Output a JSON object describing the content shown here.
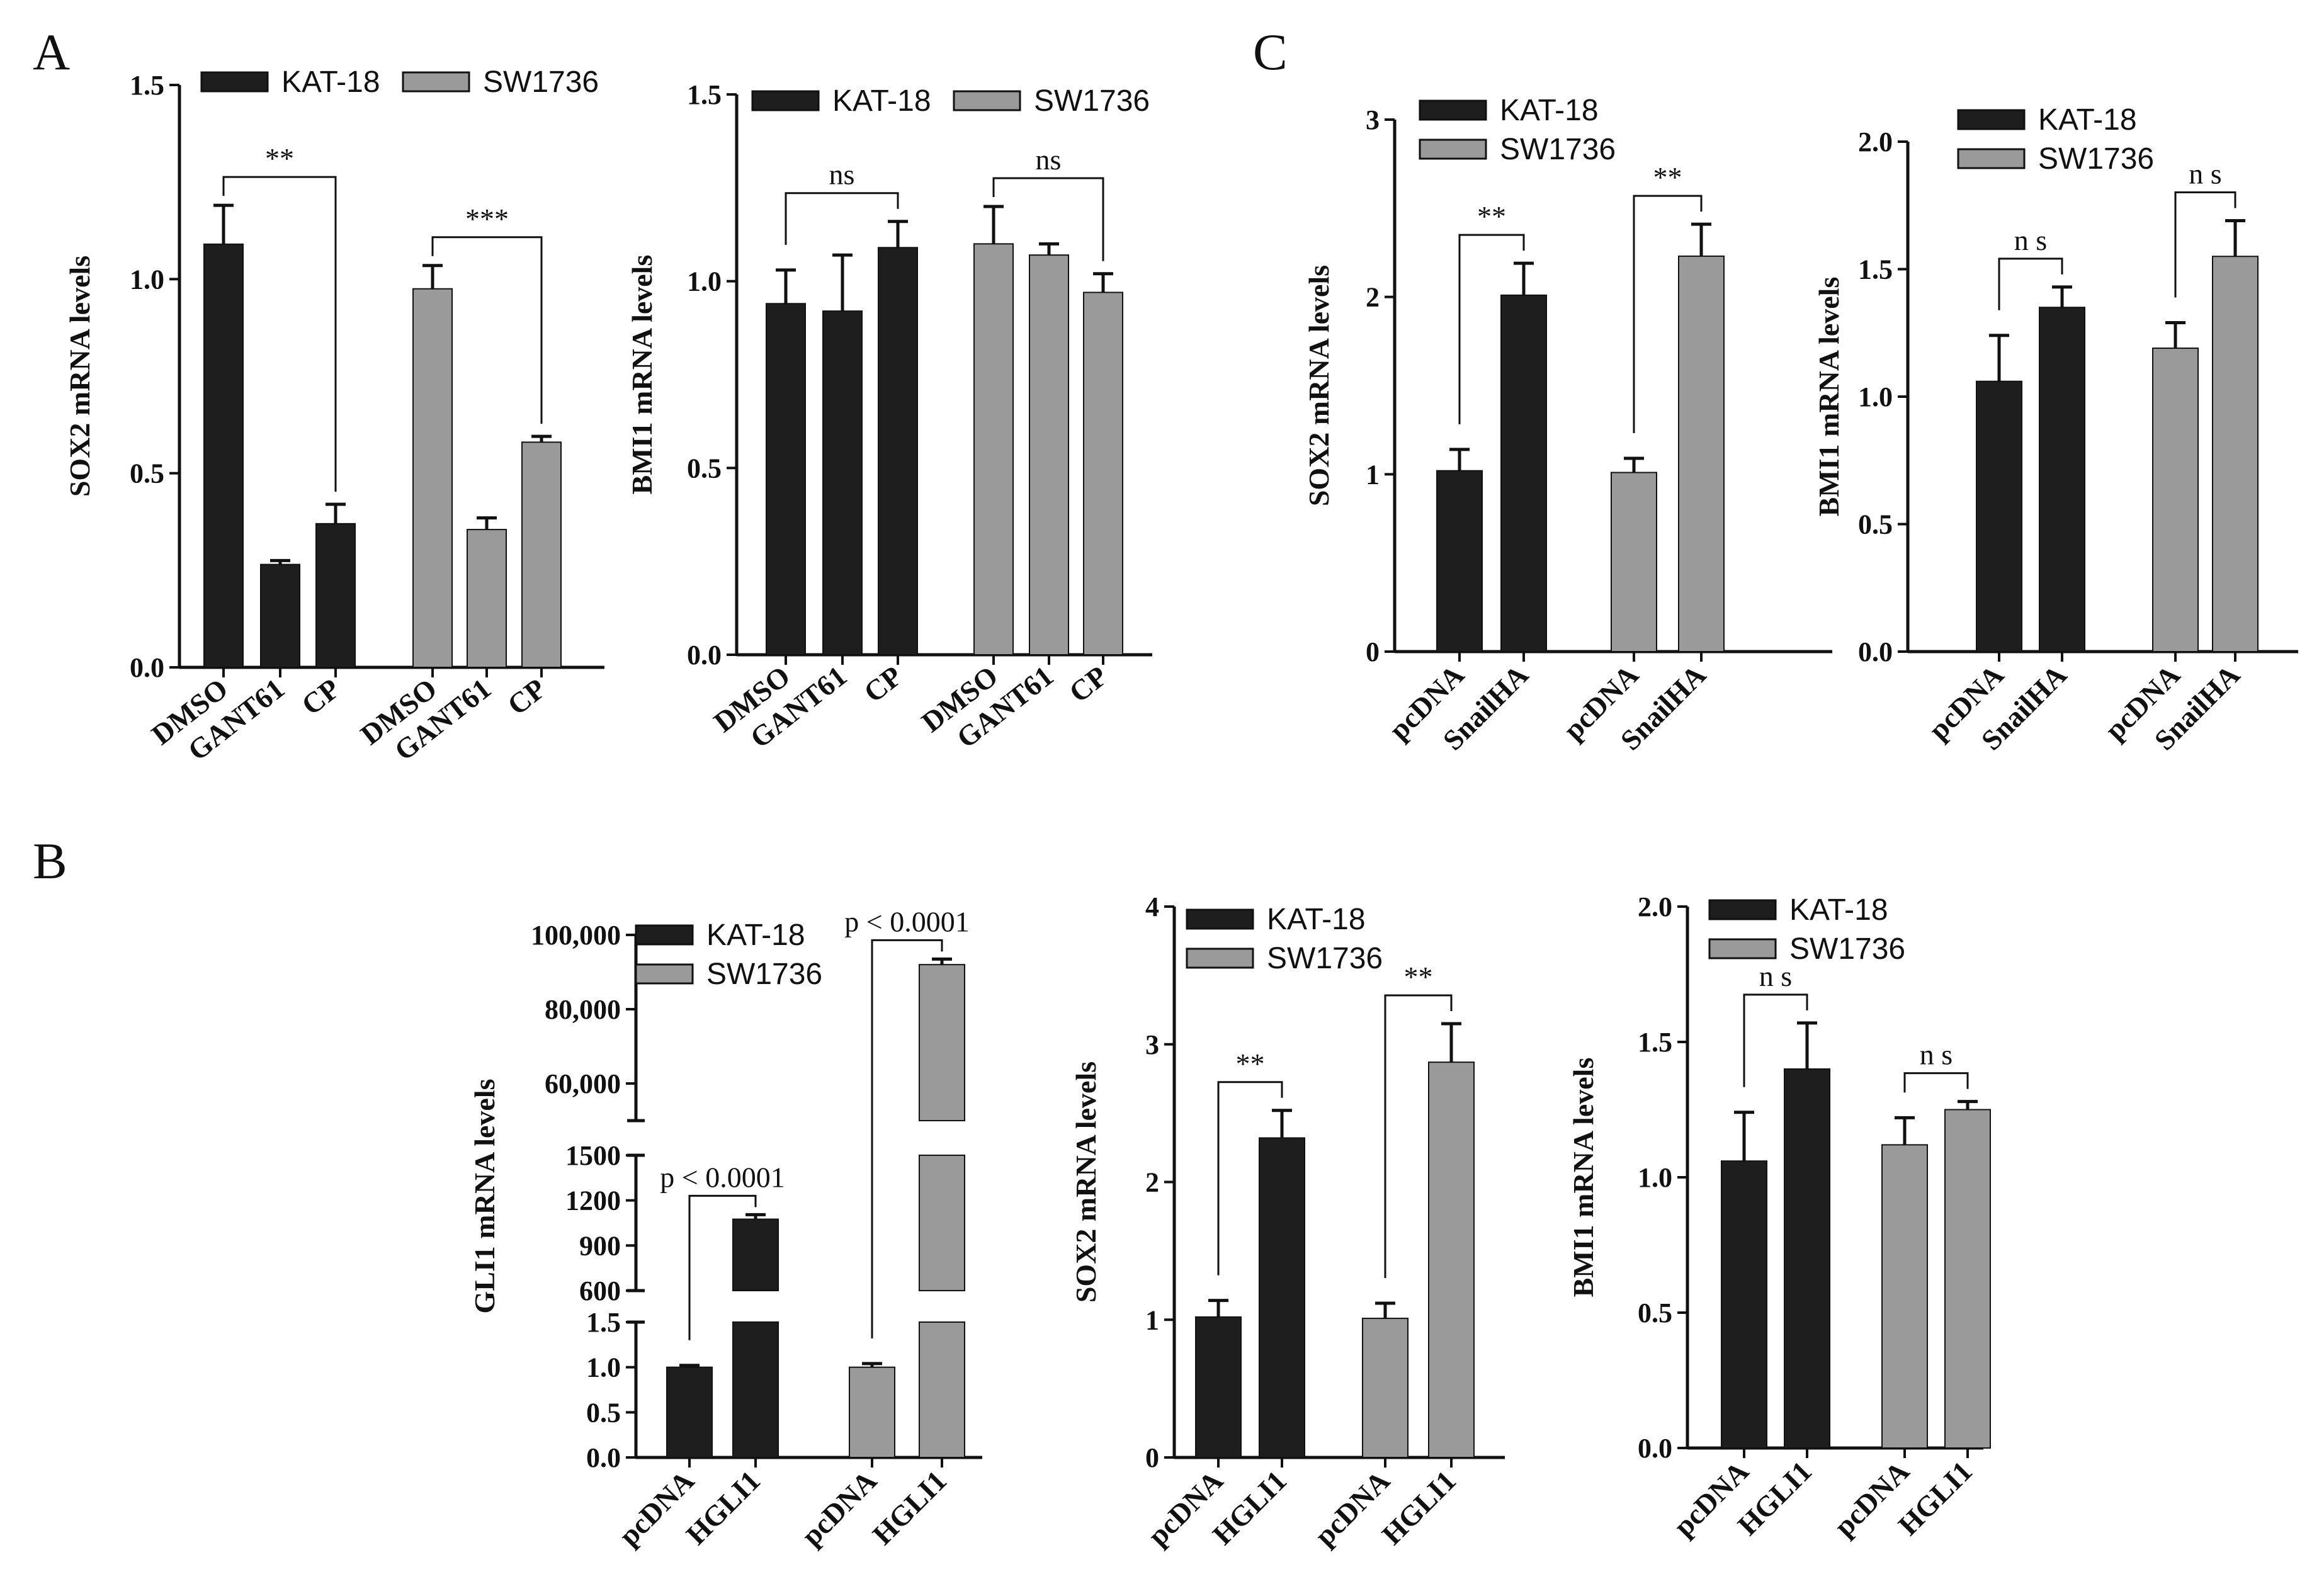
{
  "colors": {
    "kat18": "#1e1e1e",
    "sw1736": "#9a9a9a",
    "axis": "#111111"
  },
  "panels": [
    {
      "letter": "A"
    },
    {
      "letter": "B"
    },
    {
      "letter": "C"
    }
  ],
  "chart_data": [
    {
      "id": "A1",
      "type": "bar",
      "title": "",
      "ylabel": "SOX2 mRNA levels",
      "ylim": [
        0,
        1.5
      ],
      "yticks": [
        "0.0",
        "0.5",
        "1.0",
        "1.5"
      ],
      "legend": [
        "KAT-18",
        "SW1736"
      ],
      "groups": [
        {
          "name": "KAT-18",
          "series": 0,
          "categories": [
            "DMSO",
            "GANT61",
            "CP"
          ],
          "values": [
            1.09,
            0.265,
            0.37
          ],
          "errors": [
            0.1,
            0.01,
            0.05
          ]
        },
        {
          "name": "SW1736",
          "series": 1,
          "categories": [
            "DMSO",
            "GANT61",
            "CP"
          ],
          "values": [
            0.975,
            0.355,
            0.58
          ],
          "errors": [
            0.06,
            0.03,
            0.015
          ]
        }
      ],
      "annotations": [
        {
          "text": "**",
          "group": 0,
          "from": 0,
          "to": 2
        },
        {
          "text": "***",
          "group": 1,
          "from": 0,
          "to": 2
        }
      ]
    },
    {
      "id": "A2",
      "type": "bar",
      "title": "",
      "ylabel": "BMI1 mRNA levels",
      "ylim": [
        0,
        1.5
      ],
      "yticks": [
        "0.0",
        "0.5",
        "1.0",
        "1.5"
      ],
      "legend": [
        "KAT-18",
        "SW1736"
      ],
      "groups": [
        {
          "name": "KAT-18",
          "series": 0,
          "categories": [
            "DMSO",
            "GANT61",
            "CP"
          ],
          "values": [
            0.94,
            0.92,
            1.09
          ],
          "errors": [
            0.09,
            0.15,
            0.07
          ]
        },
        {
          "name": "SW1736",
          "series": 1,
          "categories": [
            "DMSO",
            "GANT61",
            "CP"
          ],
          "values": [
            1.1,
            1.07,
            0.97
          ],
          "errors": [
            0.1,
            0.03,
            0.05
          ]
        }
      ],
      "annotations": [
        {
          "text": "ns",
          "group": 0,
          "from": 0,
          "to": 2
        },
        {
          "text": "ns",
          "group": 1,
          "from": 0,
          "to": 2
        }
      ]
    },
    {
      "id": "C1",
      "type": "bar",
      "title": "",
      "ylabel": "SOX2 mRNA levels",
      "ylim": [
        0,
        3
      ],
      "yticks": [
        "0",
        "1",
        "2",
        "3"
      ],
      "legend": [
        "KAT-18",
        "SW1736"
      ],
      "groups": [
        {
          "name": "KAT-18",
          "series": 0,
          "categories": [
            "pcDNA",
            "SnailHA"
          ],
          "values": [
            1.02,
            2.01
          ],
          "errors": [
            0.12,
            0.18
          ]
        },
        {
          "name": "SW1736",
          "series": 1,
          "categories": [
            "pcDNA",
            "SnailHA"
          ],
          "values": [
            1.01,
            2.23
          ],
          "errors": [
            0.08,
            0.18
          ]
        }
      ],
      "annotations": [
        {
          "text": "**",
          "group": 0,
          "from": 0,
          "to": 1
        },
        {
          "text": "**",
          "group": 1,
          "from": 0,
          "to": 1
        }
      ]
    },
    {
      "id": "C2",
      "type": "bar",
      "title": "",
      "ylabel": "BMI1 mRNA levels",
      "ylim": [
        0,
        2.0
      ],
      "yticks": [
        "0.0",
        "0.5",
        "1.0",
        "1.5",
        "2.0"
      ],
      "legend": [
        "KAT-18",
        "SW1736"
      ],
      "groups": [
        {
          "name": "KAT-18",
          "series": 0,
          "categories": [
            "pcDNA",
            "SnailHA"
          ],
          "values": [
            1.06,
            1.35
          ],
          "errors": [
            0.18,
            0.08
          ]
        },
        {
          "name": "SW1736",
          "series": 1,
          "categories": [
            "pcDNA",
            "SnailHA"
          ],
          "values": [
            1.19,
            1.55
          ],
          "errors": [
            0.1,
            0.14
          ]
        }
      ],
      "annotations": [
        {
          "text": "n s",
          "group": 0,
          "from": 0,
          "to": 1
        },
        {
          "text": "n s",
          "group": 1,
          "from": 0,
          "to": 1
        }
      ]
    },
    {
      "id": "B1",
      "type": "bar",
      "title": "",
      "ylabel": "GLI1 mRNA levels",
      "axis_breaks": true,
      "segments": [
        {
          "range": [
            0,
            1.5
          ],
          "ticks": [
            "0.0",
            "0.5",
            "1.0",
            "1.5"
          ]
        },
        {
          "range": [
            600,
            1500
          ],
          "ticks": [
            "600",
            "900",
            "1200",
            "1500"
          ]
        },
        {
          "range": [
            50000,
            100000
          ],
          "ticks": [
            "60,000",
            "80,000",
            "100,000"
          ]
        }
      ],
      "legend": [
        "KAT-18",
        "SW1736"
      ],
      "groups": [
        {
          "name": "KAT-18",
          "series": 0,
          "categories": [
            "pcDNA",
            "HGLI1"
          ],
          "values": [
            1.0,
            1075
          ],
          "errors": [
            0.02,
            30
          ]
        },
        {
          "name": "SW1736",
          "series": 1,
          "categories": [
            "pcDNA",
            "HGLI1"
          ],
          "values": [
            1.0,
            92000
          ],
          "errors": [
            0.04,
            1500
          ]
        }
      ],
      "annotations": [
        {
          "text": "p < 0.0001",
          "group": 0,
          "from": 0,
          "to": 1
        },
        {
          "text": "p < 0.0001",
          "group": 1,
          "from": 0,
          "to": 1
        }
      ]
    },
    {
      "id": "B2",
      "type": "bar",
      "title": "",
      "ylabel": "SOX2 mRNA levels",
      "ylim": [
        0,
        4
      ],
      "yticks": [
        "0",
        "1",
        "2",
        "3",
        "4"
      ],
      "legend": [
        "KAT-18",
        "SW1736"
      ],
      "groups": [
        {
          "name": "KAT-18",
          "series": 0,
          "categories": [
            "pcDNA",
            "HGLI1"
          ],
          "values": [
            1.02,
            2.32
          ],
          "errors": [
            0.12,
            0.2
          ]
        },
        {
          "name": "SW1736",
          "series": 1,
          "categories": [
            "pcDNA",
            "HGLI1"
          ],
          "values": [
            1.01,
            2.87
          ],
          "errors": [
            0.11,
            0.28
          ]
        }
      ],
      "annotations": [
        {
          "text": "**",
          "group": 0,
          "from": 0,
          "to": 1
        },
        {
          "text": "**",
          "group": 1,
          "from": 0,
          "to": 1
        }
      ]
    },
    {
      "id": "B3",
      "type": "bar",
      "title": "",
      "ylabel": "BMI1 mRNA levels",
      "ylim": [
        0,
        2.0
      ],
      "yticks": [
        "0.0",
        "0.5",
        "1.0",
        "1.5",
        "2.0"
      ],
      "legend": [
        "KAT-18",
        "SW1736"
      ],
      "groups": [
        {
          "name": "KAT-18",
          "series": 0,
          "categories": [
            "pcDNA",
            "HGLI1"
          ],
          "values": [
            1.06,
            1.4
          ],
          "errors": [
            0.18,
            0.17
          ]
        },
        {
          "name": "SW1736",
          "series": 1,
          "categories": [
            "pcDNA",
            "HGLI1"
          ],
          "values": [
            1.12,
            1.25
          ],
          "errors": [
            0.1,
            0.03
          ]
        }
      ],
      "annotations": [
        {
          "text": "n s",
          "group": 0,
          "from": 0,
          "to": 1
        },
        {
          "text": "n s",
          "group": 1,
          "from": 0,
          "to": 1
        }
      ]
    }
  ]
}
